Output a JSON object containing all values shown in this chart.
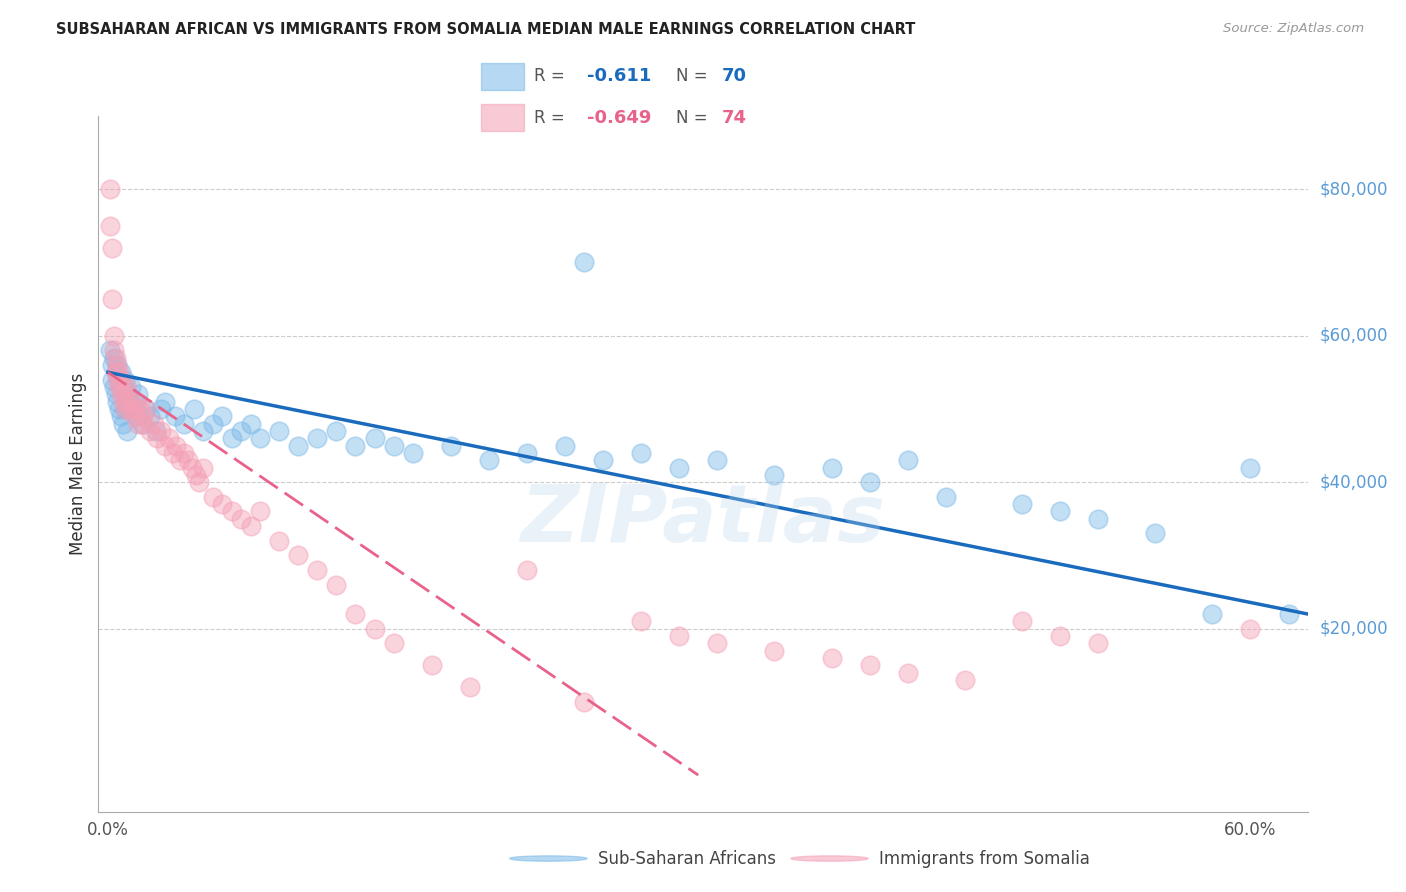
{
  "title": "SUBSAHARAN AFRICAN VS IMMIGRANTS FROM SOMALIA MEDIAN MALE EARNINGS CORRELATION CHART",
  "source": "Source: ZipAtlas.com",
  "ylabel": "Median Male Earnings",
  "r_blue": -0.611,
  "n_blue": 70,
  "r_pink": -0.649,
  "n_pink": 74,
  "legend_blue": "Sub-Saharan Africans",
  "legend_pink": "Immigrants from Somalia",
  "watermark": "ZIPatlas",
  "y_ticks": [
    20000,
    40000,
    60000,
    80000
  ],
  "y_tick_labels": [
    "$20,000",
    "$40,000",
    "$60,000",
    "$80,000"
  ],
  "xlim": [
    -0.005,
    0.63
  ],
  "ylim": [
    -5000,
    90000
  ],
  "blue_color": "#7ab8e8",
  "pink_color": "#f4a0b5",
  "trend_blue": "#1a6bbd",
  "trend_pink": "#e8628a",
  "blue_trend_x0": 0.0,
  "blue_trend_y0": 55000,
  "blue_trend_x1": 0.63,
  "blue_trend_y1": 22000,
  "pink_trend_x0": 0.0,
  "pink_trend_y0": 55000,
  "pink_trend_x1": 0.31,
  "pink_trend_y1": 0,
  "blue_scatter_x": [
    0.001,
    0.002,
    0.002,
    0.003,
    0.003,
    0.004,
    0.004,
    0.005,
    0.005,
    0.006,
    0.006,
    0.007,
    0.007,
    0.008,
    0.008,
    0.009,
    0.009,
    0.01,
    0.01,
    0.011,
    0.012,
    0.013,
    0.014,
    0.015,
    0.016,
    0.018,
    0.02,
    0.022,
    0.025,
    0.028,
    0.03,
    0.035,
    0.04,
    0.045,
    0.05,
    0.055,
    0.06,
    0.065,
    0.07,
    0.075,
    0.08,
    0.09,
    0.1,
    0.11,
    0.12,
    0.13,
    0.14,
    0.15,
    0.16,
    0.18,
    0.2,
    0.22,
    0.24,
    0.26,
    0.28,
    0.3,
    0.32,
    0.35,
    0.38,
    0.4,
    0.42,
    0.44,
    0.48,
    0.5,
    0.52,
    0.55,
    0.58,
    0.6,
    0.62,
    0.25
  ],
  "blue_scatter_y": [
    58000,
    56000,
    54000,
    57000,
    53000,
    55000,
    52000,
    56000,
    51000,
    54000,
    50000,
    55000,
    49000,
    53000,
    48000,
    54000,
    50000,
    52000,
    47000,
    51000,
    53000,
    50000,
    51000,
    49000,
    52000,
    48000,
    50000,
    49000,
    47000,
    50000,
    51000,
    49000,
    48000,
    50000,
    47000,
    48000,
    49000,
    46000,
    47000,
    48000,
    46000,
    47000,
    45000,
    46000,
    47000,
    45000,
    46000,
    45000,
    44000,
    45000,
    43000,
    44000,
    45000,
    43000,
    44000,
    42000,
    43000,
    41000,
    42000,
    40000,
    43000,
    38000,
    37000,
    36000,
    35000,
    33000,
    22000,
    42000,
    22000,
    70000
  ],
  "pink_scatter_x": [
    0.001,
    0.001,
    0.002,
    0.002,
    0.003,
    0.003,
    0.004,
    0.004,
    0.005,
    0.005,
    0.006,
    0.006,
    0.007,
    0.007,
    0.008,
    0.008,
    0.009,
    0.009,
    0.01,
    0.01,
    0.011,
    0.012,
    0.013,
    0.014,
    0.015,
    0.016,
    0.017,
    0.018,
    0.019,
    0.02,
    0.022,
    0.024,
    0.026,
    0.028,
    0.03,
    0.032,
    0.034,
    0.036,
    0.038,
    0.04,
    0.042,
    0.044,
    0.046,
    0.048,
    0.05,
    0.055,
    0.06,
    0.065,
    0.07,
    0.075,
    0.08,
    0.09,
    0.1,
    0.11,
    0.12,
    0.13,
    0.14,
    0.15,
    0.17,
    0.19,
    0.22,
    0.25,
    0.28,
    0.3,
    0.32,
    0.35,
    0.38,
    0.4,
    0.42,
    0.45,
    0.48,
    0.5,
    0.52,
    0.6
  ],
  "pink_scatter_y": [
    80000,
    75000,
    65000,
    72000,
    60000,
    58000,
    57000,
    55000,
    56000,
    54000,
    55000,
    53000,
    54000,
    52000,
    53000,
    51000,
    52000,
    50000,
    53000,
    51000,
    50000,
    51000,
    50000,
    49000,
    51000,
    48000,
    50000,
    49000,
    48000,
    50000,
    47000,
    48000,
    46000,
    47000,
    45000,
    46000,
    44000,
    45000,
    43000,
    44000,
    43000,
    42000,
    41000,
    40000,
    42000,
    38000,
    37000,
    36000,
    35000,
    34000,
    36000,
    32000,
    30000,
    28000,
    26000,
    22000,
    20000,
    18000,
    15000,
    12000,
    28000,
    10000,
    21000,
    19000,
    18000,
    17000,
    16000,
    15000,
    14000,
    13000,
    21000,
    19000,
    18000,
    20000
  ]
}
